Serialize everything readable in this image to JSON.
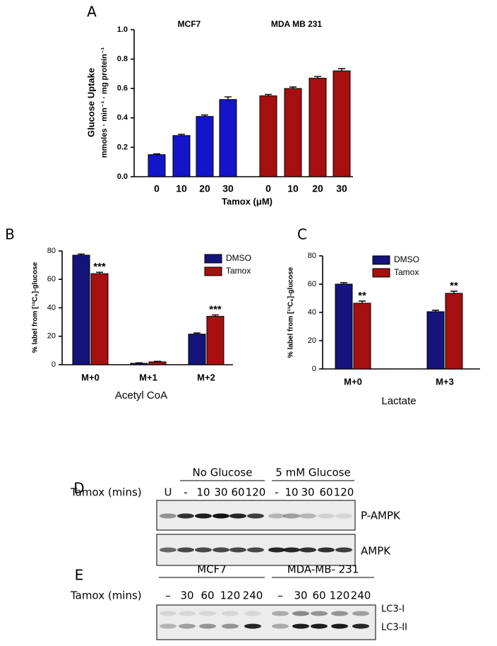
{
  "chart_data": [
    {
      "type": "bar",
      "panel": "A",
      "y_label": "Glucose Uptake",
      "y_label_units": "mmoles · min⁻¹ · mg protein⁻¹",
      "x_label": "Tamox (μM)",
      "groups": [
        {
          "name": "MCF7",
          "color": "#1414c8",
          "categories": [
            "0",
            "10",
            "20",
            "30"
          ],
          "values": [
            0.15,
            0.28,
            0.41,
            0.525
          ],
          "errors": [
            0.005,
            0.008,
            0.01,
            0.018
          ]
        },
        {
          "name": "MDA MB 231",
          "color": "#a50f0f",
          "categories": [
            "0",
            "10",
            "20",
            "30"
          ],
          "values": [
            0.55,
            0.6,
            0.67,
            0.72
          ],
          "errors": [
            0.01,
            0.01,
            0.012,
            0.015
          ]
        }
      ],
      "ylim": [
        0,
        1
      ],
      "yticks": [
        {
          "value": 0,
          "label": "0.0"
        },
        {
          "value": 0.2,
          "label": "0.2"
        },
        {
          "value": 0.4,
          "label": "0.4"
        },
        {
          "value": 0.6,
          "label": "0.6"
        },
        {
          "value": 0.8,
          "label": "0.8"
        },
        {
          "value": 1,
          "label": "1.0"
        }
      ]
    },
    {
      "type": "grouped-bar",
      "panel": "B",
      "y_label": "% label from [¹³C₆]-glucose",
      "x_label": "Acetyl CoA",
      "categories": [
        "M+0",
        "M+1",
        "M+2"
      ],
      "series": [
        {
          "name": "DMSO",
          "color": "#14147a",
          "values": [
            77,
            1,
            21.5
          ],
          "errors": [
            0.8,
            0.3,
            0.8
          ]
        },
        {
          "name": "Tamox",
          "color": "#a50f0f",
          "values": [
            64,
            2,
            34
          ],
          "errors": [
            1,
            0.4,
            1
          ],
          "significance": [
            "***",
            null,
            "***"
          ]
        }
      ],
      "ylim": [
        0,
        80
      ],
      "yticks": [
        0,
        20,
        40,
        60,
        80
      ]
    },
    {
      "type": "grouped-bar",
      "panel": "C",
      "y_label": "% label from [¹³C₆]-glucose",
      "x_label": "Lactate",
      "categories": [
        "M+0",
        "M+3"
      ],
      "series": [
        {
          "name": "DMSO",
          "color": "#14147a",
          "values": [
            60,
            40.5
          ],
          "errors": [
            1,
            1
          ]
        },
        {
          "name": "Tamox",
          "color": "#a50f0f",
          "values": [
            46.5,
            53.5
          ],
          "errors": [
            1.5,
            1.5
          ],
          "significance": [
            "**",
            "**"
          ]
        }
      ],
      "ylim": [
        0,
        80
      ],
      "yticks": [
        0,
        20,
        40,
        60,
        80
      ]
    }
  ],
  "blot_d": {
    "panel": "D",
    "row_label": "Tamox (mins)",
    "headers": [
      "No Glucose",
      "5 mM Glucose"
    ],
    "lanes": [
      "U",
      "-",
      "10",
      "30",
      "60",
      "120",
      "-",
      "10",
      "30",
      "60",
      "120"
    ],
    "bands": [
      "P-AMPK",
      "AMPK"
    ]
  },
  "blot_e": {
    "panel": "E",
    "row_label": "Tamox (mins)",
    "headers": [
      "MCF7",
      "MDA-MB- 231"
    ],
    "lanes": [
      "–",
      "30",
      "60",
      "120",
      "240",
      "–",
      "30",
      "60",
      "120",
      "240"
    ],
    "bands": [
      "LC3-I",
      "LC3-II"
    ]
  }
}
